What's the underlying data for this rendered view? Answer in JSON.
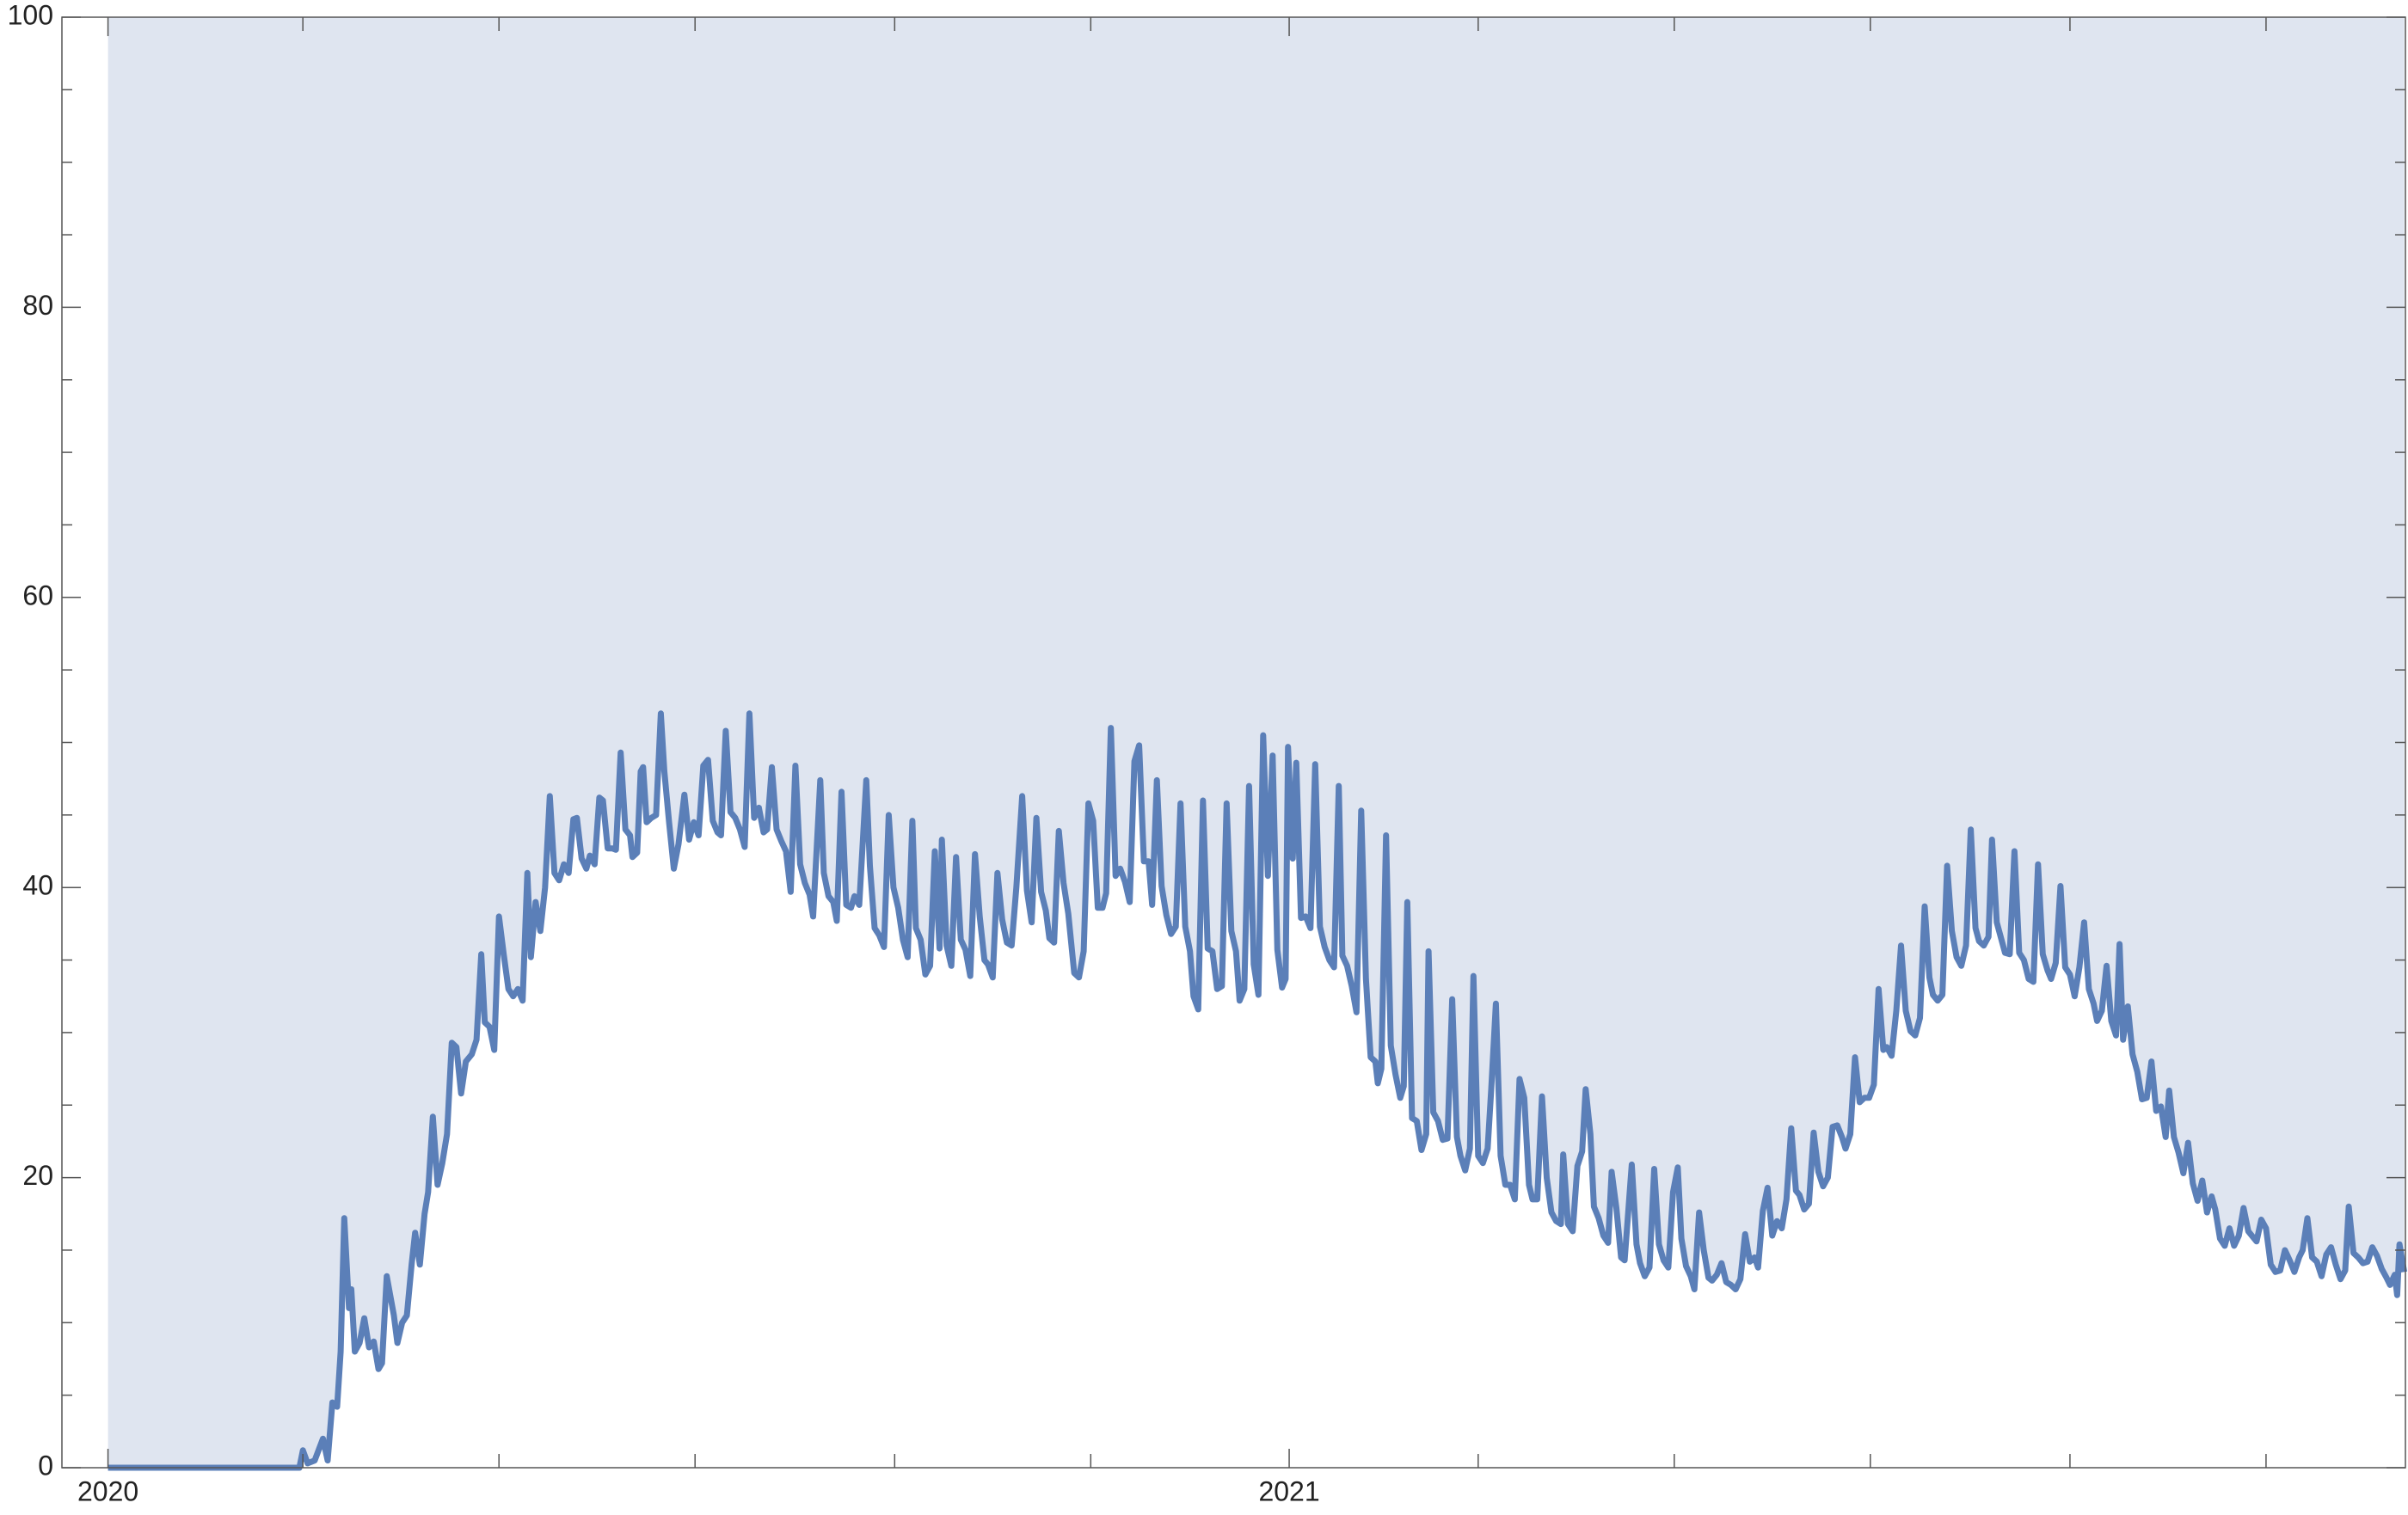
{
  "chart_data": {
    "type": "line",
    "fill": "top",
    "color": "#5b7fb8",
    "fill_color": "#dfe5f0",
    "xlim": [
      2019.961,
      2021.945
    ],
    "ylim": [
      0,
      100
    ],
    "xticks": [
      2020,
      2021
    ],
    "xminorticks": [
      2020.165,
      2020.331,
      2020.497,
      2020.666,
      2020.832,
      2021.16,
      2021.326,
      2021.492,
      2021.661,
      2021.827
    ],
    "yticks": [
      0,
      20,
      40,
      60,
      80,
      100
    ],
    "yminorticks": [
      5,
      10,
      15,
      25,
      30,
      35,
      45,
      50,
      55,
      65,
      70,
      75,
      85,
      90,
      95
    ],
    "x": [
      2020,
      2020.162,
      2020.165,
      2020.169,
      2020.175,
      2020.182,
      2020.186,
      2020.19,
      2020.194,
      2020.197,
      2020.2,
      2020.204,
      2020.206,
      2020.209,
      2020.213,
      2020.217,
      2020.221,
      2020.225,
      2020.229,
      2020.232,
      2020.236,
      2020.242,
      2020.245,
      2020.249,
      2020.253,
      2020.257,
      2020.26,
      2020.264,
      2020.268,
      2020.271,
      2020.275,
      2020.279,
      2020.283,
      2020.287,
      2020.291,
      2020.295,
      2020.299,
      2020.303,
      2020.308,
      2020.312,
      2020.316,
      2020.319,
      2020.323,
      2020.327,
      2020.331,
      2020.335,
      2020.339,
      2020.343,
      2020.347,
      2020.351,
      2020.355,
      2020.358,
      2020.362,
      2020.366,
      2020.37,
      2020.374,
      2020.378,
      2020.382,
      2020.386,
      2020.39,
      2020.394,
      2020.397,
      2020.401,
      2020.405,
      2020.408,
      2020.412,
      2020.416,
      2020.419,
      2020.423,
      2020.427,
      2020.43,
      2020.434,
      2020.438,
      2020.442,
      2020.444,
      2020.448,
      2020.451,
      2020.453,
      2020.456,
      2020.46,
      2020.464,
      2020.468,
      2020.471,
      2020.475,
      2020.479,
      2020.483,
      2020.488,
      2020.492,
      2020.496,
      2020.5,
      2020.504,
      2020.508,
      2020.512,
      2020.516,
      2020.519,
      2020.523,
      2020.527,
      2020.531,
      2020.535,
      2020.539,
      2020.543,
      2020.547,
      2020.551,
      2020.555,
      2020.558,
      2020.562,
      2020.566,
      2020.57,
      2020.574,
      2020.578,
      2020.582,
      2020.586,
      2020.59,
      2020.594,
      2020.597,
      2020.603,
      2020.606,
      2020.61,
      2020.614,
      2020.617,
      2020.621,
      2020.625,
      2020.629,
      2020.632,
      2020.636,
      2020.642,
      2020.645,
      2020.649,
      2020.653,
      2020.657,
      2020.661,
      2020.665,
      2020.669,
      2020.673,
      2020.677,
      2020.681,
      2020.684,
      2020.688,
      2020.692,
      2020.696,
      2020.7,
      2020.704,
      2020.706,
      2020.71,
      2020.714,
      2020.718,
      2020.722,
      2020.726,
      2020.73,
      2020.734,
      2020.738,
      2020.742,
      2020.745,
      2020.749,
      2020.753,
      2020.757,
      2020.761,
      2020.765,
      2020.769,
      2020.774,
      2020.778,
      2020.782,
      2020.786,
      2020.79,
      2020.794,
      2020.797,
      2020.801,
      2020.805,
      2020.809,
      2020.813,
      2020.818,
      2020.822,
      2020.826,
      2020.83,
      2020.834,
      2020.838,
      2020.842,
      2020.845,
      2020.849,
      2020.853,
      2020.857,
      2020.861,
      2020.865,
      2020.869,
      2020.873,
      2020.877,
      2020.881,
      2020.884,
      2020.888,
      2020.892,
      2020.896,
      2020.9,
      2020.904,
      2020.908,
      2020.912,
      2020.916,
      2020.919,
      2020.923,
      2020.927,
      2020.931,
      2020.935,
      2020.939,
      2020.943,
      2020.947,
      2020.951,
      2020.955,
      2020.958,
      2020.962,
      2020.966,
      2020.97,
      2020.974,
      2020.978,
      2020.982,
      2020.986,
      2020.99,
      2020.994,
      2020.997,
      2020.999,
      2021.003,
      2021.006,
      2021.01,
      2021.014,
      2021.018,
      2021.022,
      2021.026,
      2021.03,
      2021.034,
      2021.038,
      2021.042,
      2021.045,
      2021.049,
      2021.053,
      2021.057,
      2021.061,
      2021.065,
      2021.069,
      2021.073,
      2021.075,
      2021.078,
      2021.082,
      2021.086,
      2021.09,
      2021.094,
      2021.097,
      2021.1,
      2021.104,
      2021.108,
      2021.112,
      2021.116,
      2021.118,
      2021.122,
      2021.126,
      2021.13,
      2021.134,
      2021.138,
      2021.142,
      2021.145,
      2021.149,
      2021.153,
      2021.156,
      2021.16,
      2021.164,
      2021.168,
      2021.171,
      2021.175,
      2021.179,
      2021.183,
      2021.187,
      2021.191,
      2021.195,
      2021.199,
      2021.203,
      2021.206,
      2021.21,
      2021.214,
      2021.218,
      2021.222,
      2021.226,
      2021.23,
      2021.232,
      2021.236,
      2021.24,
      2021.244,
      2021.248,
      2021.251,
      2021.255,
      2021.258,
      2021.262,
      2021.266,
      2021.27,
      2021.273,
      2021.277,
      2021.281,
      2021.284,
      2021.29,
      2021.294,
      2021.297,
      2021.301,
      2021.305,
      2021.309,
      2021.313,
      2021.317,
      2021.321,
      2021.325,
      2021.329,
      2021.332,
      2021.336,
      2021.34,
      2021.343,
      2021.347,
      2021.351,
      2021.355,
      2021.358,
      2021.362,
      2021.366,
      2021.37,
      2021.374,
      2021.378,
      2021.382,
      2021.386,
      2021.39,
      2021.394,
      2021.397,
      2021.401,
      2021.405,
      2021.409,
      2021.413,
      2021.417,
      2021.421,
      2021.425,
      2021.429,
      2021.432,
      2021.436,
      2021.44,
      2021.444,
      2021.448,
      2021.452,
      2021.456,
      2021.46,
      2021.464,
      2021.468,
      2021.471,
      2021.475,
      2021.479,
      2021.483,
      2021.487,
      2021.491,
      2021.495,
      2021.499,
      2021.503,
      2021.506,
      2021.51,
      2021.514,
      2021.518,
      2021.522,
      2021.526,
      2021.53,
      2021.534,
      2021.538,
      2021.542,
      2021.545,
      2021.549,
      2021.553,
      2021.557,
      2021.561,
      2021.565,
      2021.569,
      2021.573,
      2021.577,
      2021.581,
      2021.584,
      2021.588,
      2021.592,
      2021.595,
      2021.599,
      2021.603,
      2021.606,
      2021.61,
      2021.614,
      2021.618,
      2021.622,
      2021.626,
      2021.63,
      2021.634,
      2021.638,
      2021.642,
      2021.645,
      2021.649,
      2021.653,
      2021.657,
      2021.661,
      2021.665,
      2021.669,
      2021.673,
      2021.677,
      2021.681,
      2021.684,
      2021.688,
      2021.692,
      2021.696,
      2021.7,
      2021.703,
      2021.706,
      2021.71,
      2021.714,
      2021.718,
      2021.722,
      2021.726,
      2021.73,
      2021.734,
      2021.738,
      2021.742,
      2021.745,
      2021.749,
      2021.753,
      2021.757,
      2021.761,
      2021.765,
      2021.769,
      2021.773,
      2021.777,
      2021.781,
      2021.784,
      2021.788,
      2021.792,
      2021.796,
      2021.8,
      2021.804,
      2021.808,
      2021.812,
      2021.816,
      2021.819,
      2021.823,
      2021.827,
      2021.831,
      2021.835,
      2021.839,
      2021.843,
      2021.847,
      2021.851,
      2021.855,
      2021.858,
      2021.862,
      2021.866,
      2021.87,
      2021.874,
      2021.878,
      2021.882,
      2021.886,
      2021.89,
      2021.894,
      2021.897,
      2021.901,
      2021.905,
      2021.909,
      2021.913,
      2021.917,
      2021.921,
      2021.925,
      2021.929,
      2021.932,
      2021.936,
      2021.938,
      2021.94,
      2021.944
    ],
    "values": [
      0,
      0,
      1.2,
      0.3,
      0.5,
      2,
      0.5,
      4.5,
      4.2,
      8,
      17.2,
      11,
      12.3,
      8,
      8.6,
      10.3,
      8.3,
      8.7,
      6.8,
      7.2,
      13.2,
      10.5,
      8.6,
      10,
      10.5,
      14,
      16.2,
      14,
      17.5,
      19,
      24.2,
      19.5,
      21,
      23,
      29.3,
      29,
      25.8,
      28,
      28.5,
      29.5,
      35.4,
      30.7,
      30.4,
      28.8,
      38,
      35.4,
      33,
      32.5,
      33,
      32.2,
      41,
      35.2,
      39,
      37,
      40,
      46.3,
      41,
      40.5,
      41.6,
      41,
      44.7,
      44.8,
      42,
      41.3,
      42.2,
      41.6,
      46.2,
      46,
      42.7,
      42.7,
      42.6,
      49.3,
      44,
      43.6,
      42.1,
      42.4,
      48,
      48.3,
      44.5,
      44.8,
      45,
      52,
      48,
      44.5,
      41.3,
      43,
      46.4,
      43.3,
      44.5,
      43.6,
      48.4,
      48.8,
      44.6,
      43.8,
      43.6,
      50.8,
      45.2,
      44.8,
      44,
      42.8,
      52,
      44.8,
      45.5,
      43.8,
      44,
      48.3,
      44,
      43.2,
      42.5,
      39.7,
      48.4,
      41.6,
      40.3,
      39.5,
      38,
      47.4,
      41,
      39.4,
      39,
      37.7,
      46.6,
      38.8,
      38.6,
      39.4,
      38.8,
      47.4,
      41.5,
      37.2,
      36.7,
      35.9,
      45,
      40,
      38.6,
      36.4,
      35.2,
      44.6,
      37.2,
      36.4,
      34,
      34.6,
      42.5,
      35.8,
      43.3,
      36,
      34.6,
      42.1,
      36.4,
      35.7,
      33.9,
      42.3,
      38,
      35,
      34.7,
      33.8,
      41,
      37.8,
      36.2,
      36,
      40,
      46.3,
      39.8,
      37.6,
      44.8,
      39.7,
      38.4,
      36.5,
      36.2,
      43.9,
      40.3,
      38.2,
      34.1,
      33.8,
      35.6,
      45.8,
      44.6,
      38.6,
      38.6,
      39.6,
      51,
      40.8,
      41.3,
      40.4,
      39,
      48.7,
      49.8,
      41.8,
      41.8,
      38.8,
      47.4,
      40.1,
      38.1,
      36.8,
      37.3,
      45.8,
      37.3,
      35.6,
      32.5,
      31.6,
      46,
      35.8,
      35.6,
      33,
      33.2,
      45.8,
      37,
      35.6,
      32.2,
      33,
      47,
      34.7,
      32.6,
      50.5,
      40.8,
      49.1,
      35.7,
      33.1,
      33.7,
      49.7,
      42,
      48.6,
      37.9,
      38,
      37.2,
      48.5,
      37.3,
      35.9,
      35,
      34.5,
      47,
      35.3,
      34.6,
      33.2,
      31.4,
      45.3,
      33.7,
      28.3,
      28,
      26.5,
      27.5,
      43.6,
      29.1,
      27.1,
      25.5,
      26.3,
      39,
      24.1,
      23.9,
      21.9,
      23,
      35.6,
      24.5,
      23.9,
      22.6,
      22.7,
      32.3,
      22.8,
      21.5,
      20.5,
      22,
      33.9,
      21.5,
      21,
      22,
      26,
      32,
      21.5,
      19.5,
      19.5,
      18.5,
      26.8,
      25.5,
      19.5,
      18.5,
      18.5,
      25.6,
      20,
      17.6,
      17,
      16.8,
      21.6,
      16.8,
      16.3,
      20.8,
      21.8,
      26.1,
      23,
      18,
      17.2,
      16,
      15.5,
      20.4,
      17.9,
      14.5,
      14.3,
      20.9,
      15.4,
      14.1,
      13.2,
      13.8,
      20.6,
      15.4,
      14.3,
      13.8,
      19,
      20.7,
      15.8,
      13.9,
      13.2,
      12.3,
      17.6,
      15,
      13.1,
      12.9,
      13.3,
      14.1,
      12.8,
      12.6,
      12.3,
      13,
      16.1,
      14.2,
      14.5,
      13.8,
      17.7,
      19.3,
      16,
      17,
      16.5,
      18.5,
      23.4,
      19.1,
      18.8,
      17.8,
      18.2,
      23.1,
      20.4,
      19.4,
      20,
      23.5,
      23.6,
      22.8,
      22,
      23,
      28.3,
      25.2,
      25.5,
      25.5,
      26.4,
      33,
      28.8,
      29,
      28.4,
      31.5,
      36,
      31.5,
      30.1,
      29.8,
      31,
      38.7,
      33.8,
      32.6,
      32.2,
      32.6,
      41.5,
      37,
      35.2,
      34.6,
      36,
      44,
      37.2,
      36.3,
      36,
      36.6,
      43.3,
      37.6,
      36.4,
      35.5,
      35.4,
      42.5,
      35.5,
      35,
      33.7,
      33.5,
      41.6,
      35.4,
      34.3,
      33.7,
      34.8,
      40.1,
      34.5,
      34,
      32.5,
      34.5,
      37.6,
      33,
      32,
      30.8,
      31.5,
      34.6,
      30.8,
      29.8,
      36.1,
      29.5,
      31.8,
      28.5,
      27.3,
      25.4,
      25.5,
      28,
      24.6,
      24.9,
      22.8,
      26,
      22.8,
      21.7,
      20.3,
      22.4,
      19.6,
      18.4,
      19.8,
      17.6,
      18.7,
      17.8,
      15.8,
      15.3,
      16.5,
      15.3,
      16,
      17.9,
      16.3,
      15.9,
      15.6,
      17.1,
      16.5,
      14,
      13.5,
      13.6,
      15,
      14.3,
      13.5,
      14.5,
      15,
      17.2,
      14.5,
      14.2,
      13.2,
      14.7,
      15.2,
      14,
      13,
      13.6,
      18,
      14.8,
      14.5,
      14.1,
      14.2,
      15.2,
      14.6,
      13.7,
      13.1,
      12.6,
      13.3,
      11.9,
      15.4,
      13.5
    ]
  }
}
